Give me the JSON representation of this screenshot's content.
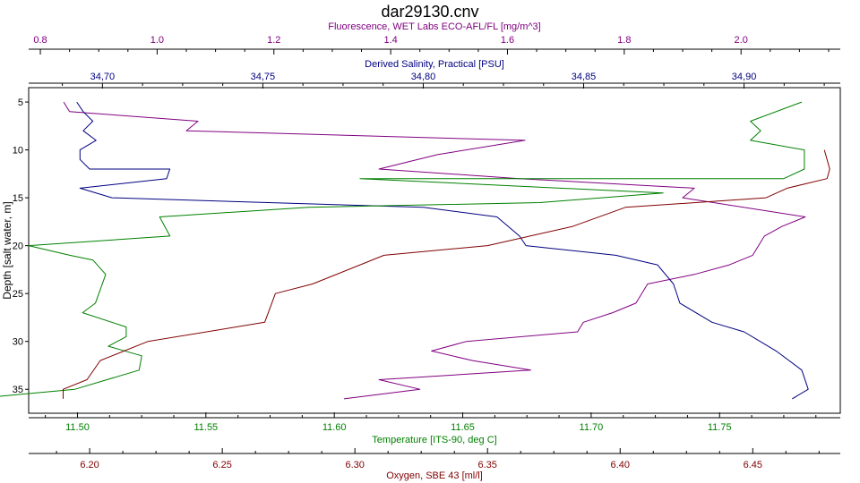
{
  "chart_data": {
    "type": "line",
    "title": "dar29130.cnv",
    "y_axis": {
      "label": "Depth [salt water, m]",
      "ticks": [
        5,
        10,
        15,
        20,
        25,
        30,
        35
      ],
      "range": [
        3.5,
        37.5
      ],
      "reversed": true
    },
    "x_axes": [
      {
        "id": "fluor",
        "position": "top",
        "label": "Fluorescence, WET Labs ECO-AFL/FL [mg/m^3]",
        "color": "#800080",
        "range": [
          0.78,
          2.17
        ],
        "ticks": [
          0.8,
          1.0,
          1.2,
          1.4,
          1.6,
          1.8,
          2.0
        ],
        "tick_labels": [
          "0.8",
          "1.0",
          "1.2",
          "1.4",
          "1.6",
          "1.8",
          "2.0"
        ]
      },
      {
        "id": "sal",
        "position": "top",
        "label": "Derived Salinity, Practical [PSU]",
        "color": "#000080",
        "range": [
          34.677,
          34.93
        ],
        "ticks": [
          34.7,
          34.75,
          34.8,
          34.85,
          34.9
        ],
        "tick_labels": [
          "34,70",
          "34,75",
          "34,80",
          "34,85",
          "34,90"
        ]
      },
      {
        "id": "temp",
        "position": "bottom",
        "label": "Temperature [ITS-90, deg C]",
        "color": "#008000",
        "range": [
          11.481,
          11.797
        ],
        "ticks": [
          11.5,
          11.55,
          11.6,
          11.65,
          11.7,
          11.75
        ],
        "tick_labels": [
          "11.50",
          "11.55",
          "11.60",
          "11.65",
          "11.70",
          "11.75"
        ]
      },
      {
        "id": "oxy",
        "position": "bottom",
        "label": "Oxygen, SBE 43 [ml/l]",
        "color": "#800000",
        "range": [
          6.177,
          6.483
        ],
        "ticks": [
          6.2,
          6.25,
          6.3,
          6.35,
          6.4,
          6.45
        ],
        "tick_labels": [
          "6.20",
          "6.25",
          "6.30",
          "6.35",
          "6.40",
          "6.45"
        ]
      }
    ],
    "series": [
      {
        "axis": "fluor",
        "color": "#800080",
        "points": [
          [
            0.84,
            5
          ],
          [
            0.85,
            6
          ],
          [
            1.07,
            7
          ],
          [
            1.05,
            8
          ],
          [
            1.63,
            9
          ],
          [
            1.48,
            10.5
          ],
          [
            1.38,
            12
          ],
          [
            1.62,
            13
          ],
          [
            1.92,
            14
          ],
          [
            1.9,
            15
          ],
          [
            2.11,
            17
          ],
          [
            2.07,
            18
          ],
          [
            2.04,
            19
          ],
          [
            2.02,
            21
          ],
          [
            1.98,
            22
          ],
          [
            1.92,
            23
          ],
          [
            1.84,
            24
          ],
          [
            1.82,
            26
          ],
          [
            1.78,
            27
          ],
          [
            1.73,
            28
          ],
          [
            1.72,
            29
          ],
          [
            1.53,
            30
          ],
          [
            1.47,
            31
          ],
          [
            1.54,
            32
          ],
          [
            1.64,
            33
          ],
          [
            1.38,
            34
          ],
          [
            1.45,
            35
          ],
          [
            1.32,
            36
          ]
        ]
      },
      {
        "axis": "sal",
        "color": "#000080",
        "points": [
          [
            34.692,
            5
          ],
          [
            34.694,
            6
          ],
          [
            34.697,
            7
          ],
          [
            34.694,
            8
          ],
          [
            34.698,
            9
          ],
          [
            34.693,
            10
          ],
          [
            34.693,
            11
          ],
          [
            34.696,
            12
          ],
          [
            34.721,
            12
          ],
          [
            34.72,
            13
          ],
          [
            34.693,
            14
          ],
          [
            34.703,
            15
          ],
          [
            34.8,
            16
          ],
          [
            34.823,
            17
          ],
          [
            34.83,
            19
          ],
          [
            34.832,
            20
          ],
          [
            34.86,
            21
          ],
          [
            34.873,
            22
          ],
          [
            34.878,
            24
          ],
          [
            34.88,
            26
          ],
          [
            34.89,
            28
          ],
          [
            34.9,
            29
          ],
          [
            34.91,
            31
          ],
          [
            34.918,
            33
          ],
          [
            34.92,
            35
          ],
          [
            34.915,
            36
          ]
        ]
      },
      {
        "axis": "temp",
        "color": "#008000",
        "points": [
          [
            11.782,
            5
          ],
          [
            11.762,
            7
          ],
          [
            11.766,
            8
          ],
          [
            11.762,
            9
          ],
          [
            11.783,
            10
          ],
          [
            11.783,
            12
          ],
          [
            11.775,
            13
          ],
          [
            11.61,
            13
          ],
          [
            11.728,
            14.5
          ],
          [
            11.68,
            15.5
          ],
          [
            11.59,
            16
          ],
          [
            11.532,
            17
          ],
          [
            11.536,
            19
          ],
          [
            11.481,
            20
          ],
          [
            11.497,
            21
          ],
          [
            11.506,
            21.5
          ],
          [
            11.511,
            23
          ],
          [
            11.507,
            26
          ],
          [
            11.502,
            27
          ],
          [
            11.519,
            28.5
          ],
          [
            11.519,
            29.5
          ],
          [
            11.512,
            30.5
          ],
          [
            11.525,
            31.5
          ],
          [
            11.524,
            33
          ],
          [
            11.499,
            35
          ],
          [
            11.459,
            36
          ]
        ]
      },
      {
        "axis": "oxy",
        "color": "#800000",
        "points": [
          [
            6.477,
            10
          ],
          [
            6.479,
            12
          ],
          [
            6.478,
            13
          ],
          [
            6.463,
            14
          ],
          [
            6.455,
            15
          ],
          [
            6.402,
            16
          ],
          [
            6.382,
            18
          ],
          [
            6.35,
            20
          ],
          [
            6.311,
            21
          ],
          [
            6.284,
            24
          ],
          [
            6.27,
            25
          ],
          [
            6.266,
            28
          ],
          [
            6.222,
            30
          ],
          [
            6.204,
            32
          ],
          [
            6.199,
            34
          ],
          [
            6.19,
            35
          ],
          [
            6.19,
            36
          ]
        ]
      }
    ]
  }
}
